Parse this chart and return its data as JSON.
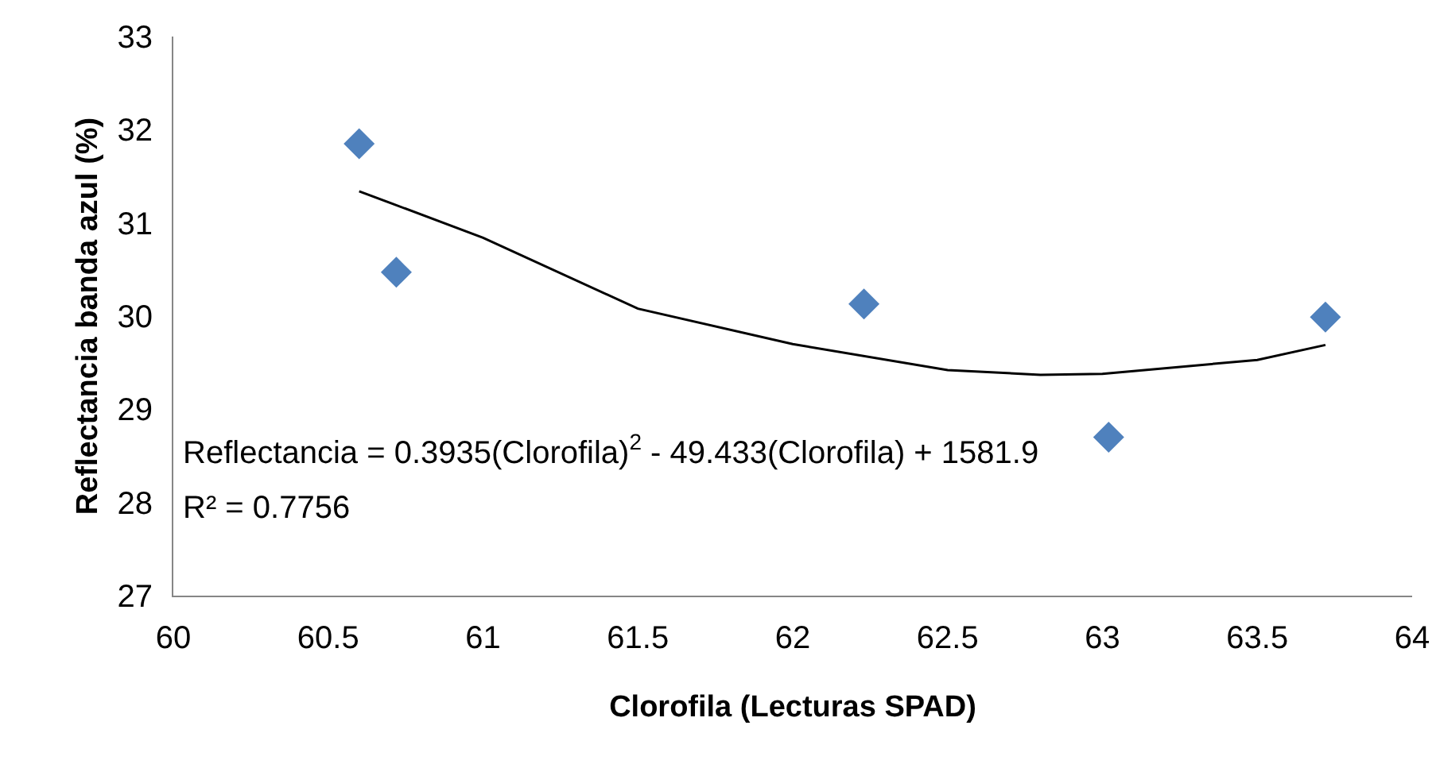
{
  "chart_data": {
    "type": "scatter",
    "xlabel": "Clorofila (Lecturas SPAD)",
    "ylabel": "Reflectancia banda azul (%)",
    "series": [
      {
        "type": "line",
        "color": "#000000",
        "marker": "none",
        "line_style": "solid",
        "x": [
          60.6,
          61,
          61.5,
          62,
          62.5,
          62.8,
          63,
          63.5,
          63.72
        ],
        "values": [
          31.34,
          30.84,
          30.08,
          29.7,
          29.42,
          29.37,
          29.38,
          29.53,
          29.69
        ]
      },
      {
        "color": "#4f81bd",
        "marker": "diamond",
        "x": [
          60.6,
          60.72,
          62.23,
          63.02,
          63.72
        ],
        "values": [
          31.85,
          30.47,
          30.13,
          28.7,
          29.99
        ]
      }
    ],
    "annotations": [
      "Reflectancia = 0.3935(Clorofila)$^{2}$ - 49.433(Clorofila) + 1581.9",
      "R² = 0.7756"
    ],
    "xlim": [
      60,
      64
    ],
    "xticks": [
      60,
      60.5,
      61,
      61.5,
      62,
      62.5,
      63,
      63.5,
      64
    ],
    "ylim": [
      27,
      33
    ],
    "yticks": [
      27,
      28,
      29,
      30,
      31,
      32,
      33
    ],
    "grid": false
  }
}
